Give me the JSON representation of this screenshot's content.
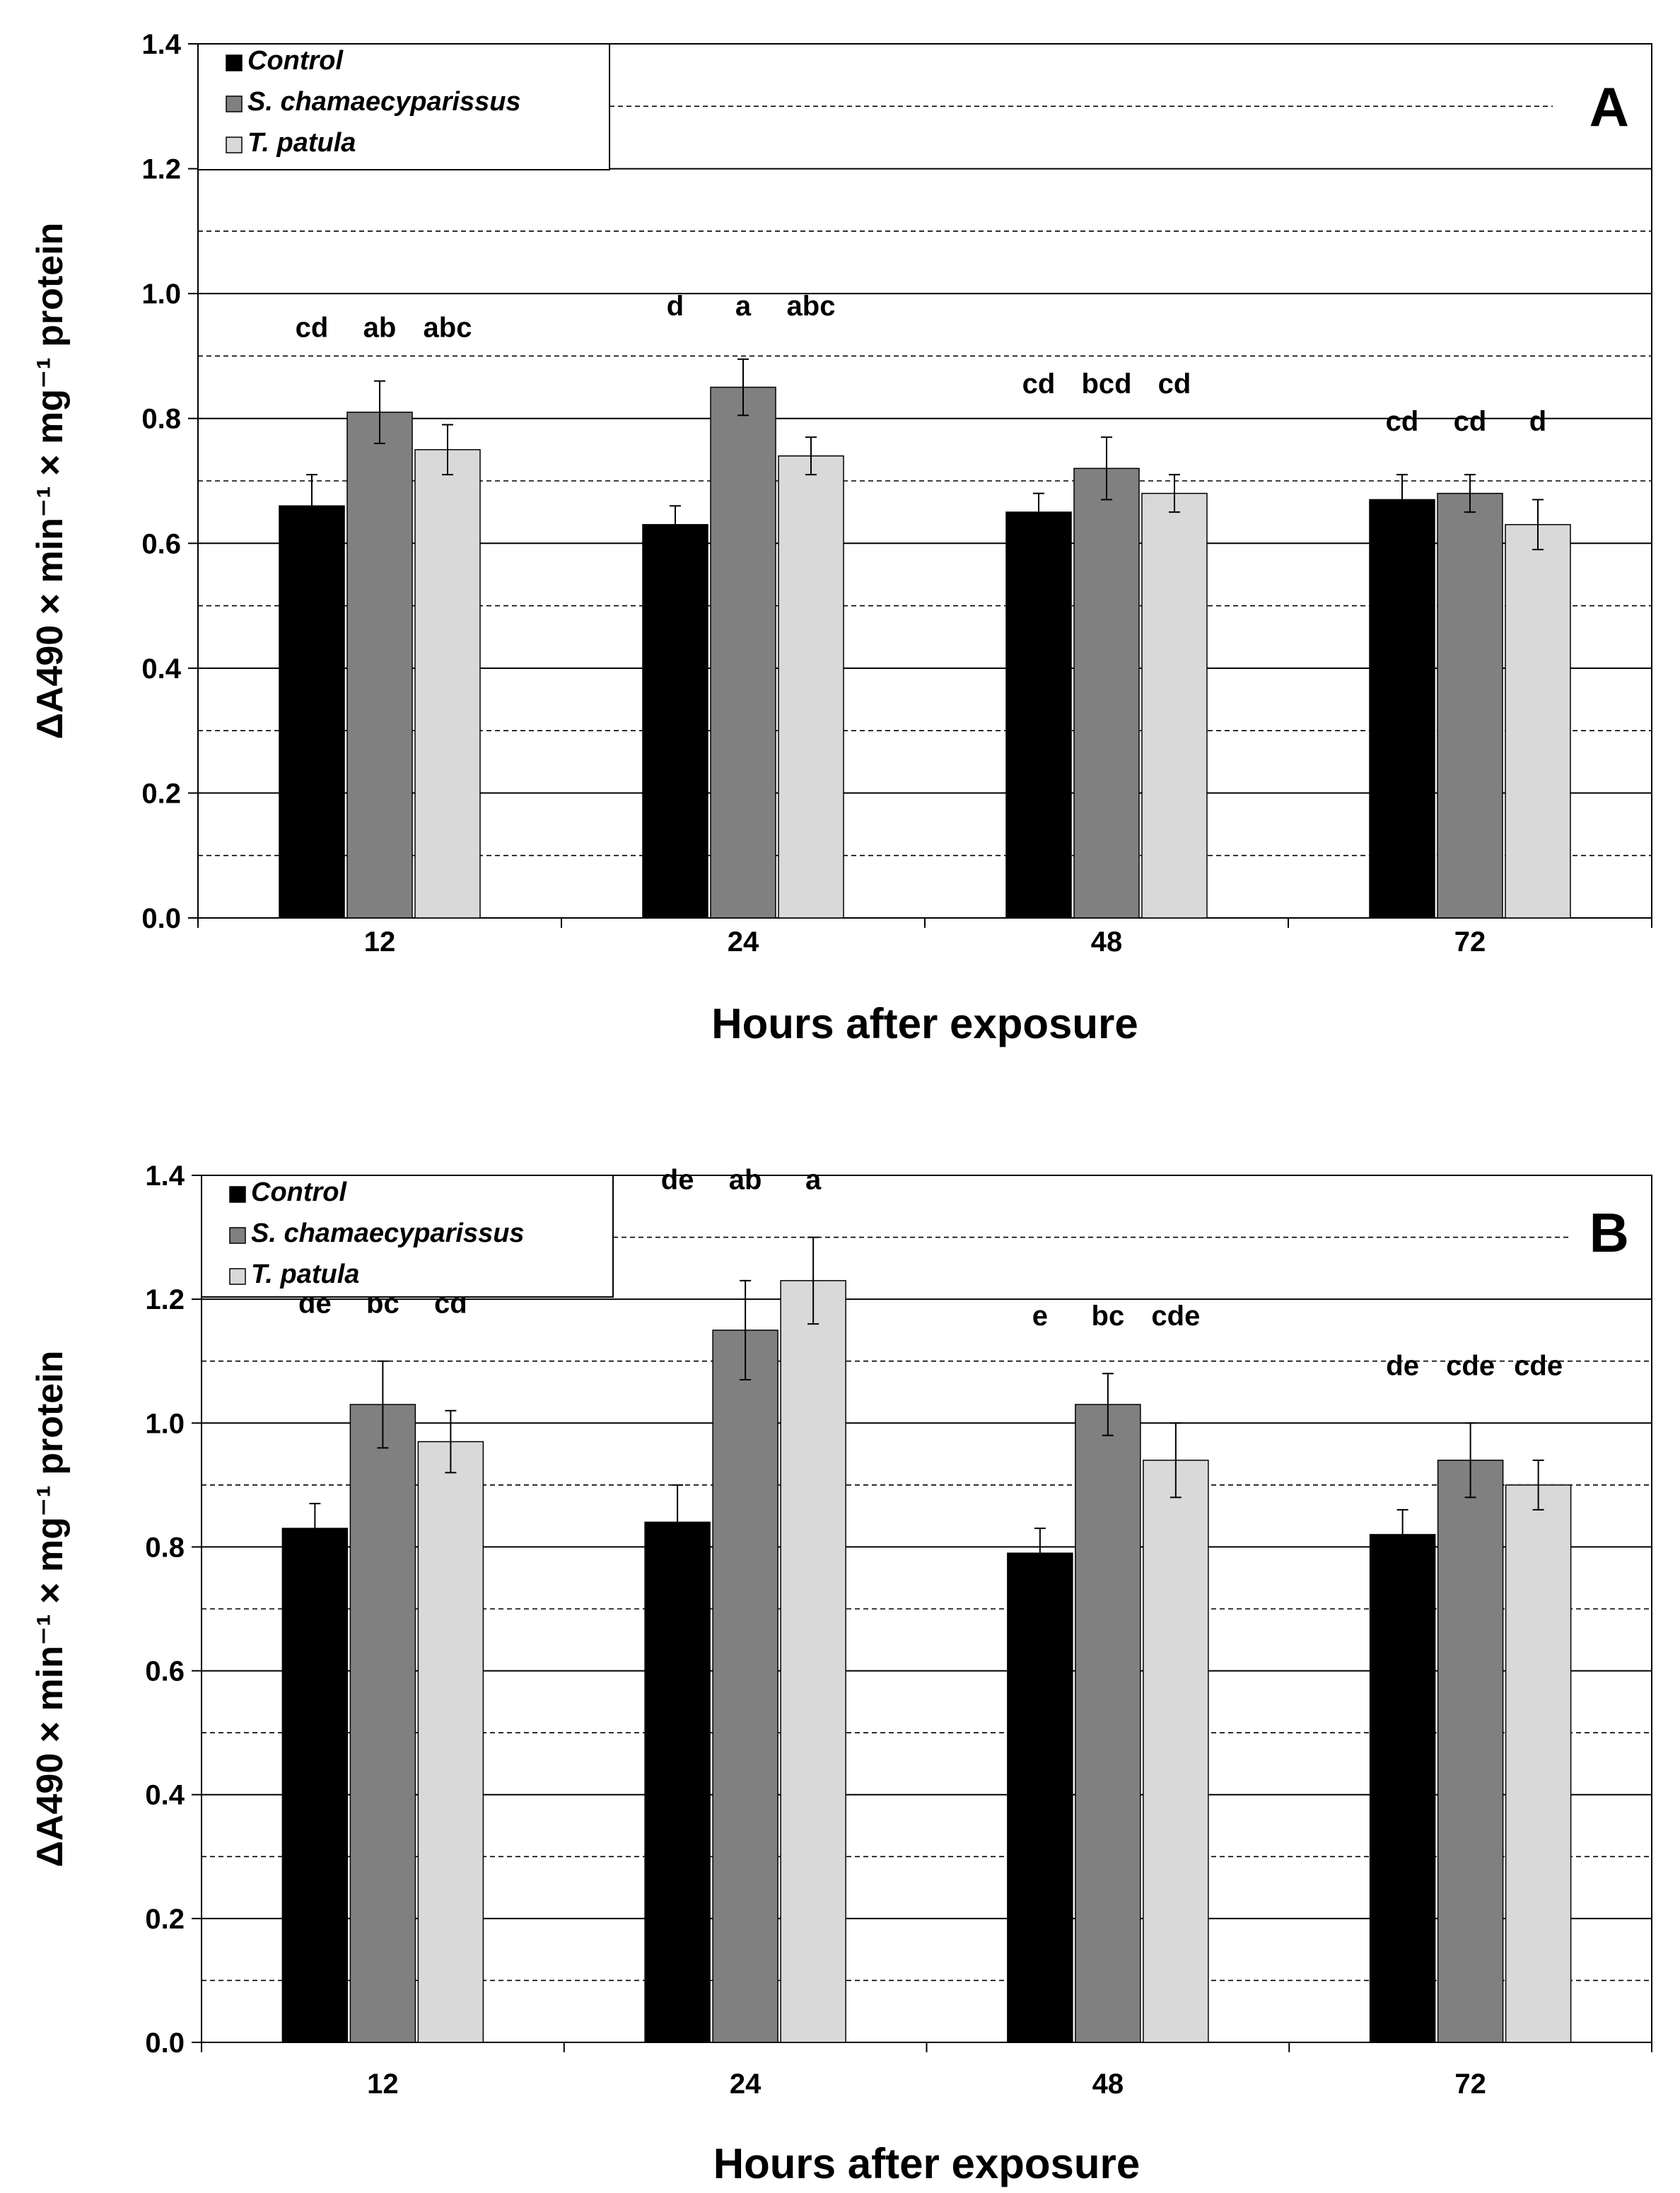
{
  "colors": {
    "Control": "#000000",
    "S. chamaecyparissus": "#808080",
    "T. patula": "#d9d9d9",
    "axis": "#000000",
    "grid_major": "#000000",
    "grid_minor": "#000000"
  },
  "chart_data": [
    {
      "panel_label": "A",
      "type": "bar",
      "xlabel": "Hours after exposure",
      "ylabel": "ΔA490 × min⁻¹ × mg⁻¹ protein",
      "ylim": [
        0,
        1.4
      ],
      "yticks": [
        "0.0",
        "0.2",
        "0.4",
        "0.6",
        "0.8",
        "1.0",
        "1.2",
        "1.4"
      ],
      "categories": [
        "12",
        "24",
        "48",
        "72"
      ],
      "legend": [
        "Control",
        "S. chamaecyparissus",
        "T. patula"
      ],
      "legend_position": "top-left",
      "series": [
        {
          "name": "Control",
          "values": [
            0.66,
            0.63,
            0.65,
            0.67
          ],
          "errors": [
            0.05,
            0.03,
            0.03,
            0.04
          ],
          "letters": [
            "cd",
            "d",
            "cd",
            "cd"
          ]
        },
        {
          "name": "S. chamaecyparissus",
          "values": [
            0.81,
            0.85,
            0.72,
            0.68
          ],
          "errors": [
            0.05,
            0.045,
            0.05,
            0.03
          ],
          "letters": [
            "ab",
            "a",
            "bcd",
            "cd"
          ]
        },
        {
          "name": "T. patula",
          "values": [
            0.75,
            0.74,
            0.68,
            0.63
          ],
          "errors": [
            0.04,
            0.03,
            0.03,
            0.04
          ],
          "letters": [
            "abc",
            "abc",
            "cd",
            "d"
          ]
        }
      ]
    },
    {
      "panel_label": "B",
      "type": "bar",
      "xlabel": "Hours after exposure",
      "ylabel": "ΔA490 × min⁻¹ × mg⁻¹ protein",
      "ylim": [
        0,
        1.4
      ],
      "yticks": [
        "0.0",
        "0.2",
        "0.4",
        "0.6",
        "0.8",
        "1.0",
        "1.2",
        "1.4"
      ],
      "categories": [
        "12",
        "24",
        "48",
        "72"
      ],
      "legend": [
        "Control",
        "S. chamaecyparissus",
        "T. patula"
      ],
      "legend_position": "top-left",
      "series": [
        {
          "name": "Control",
          "values": [
            0.83,
            0.84,
            0.79,
            0.82
          ],
          "errors": [
            0.04,
            0.06,
            0.04,
            0.04
          ],
          "letters": [
            "de",
            "de",
            "e",
            "de"
          ]
        },
        {
          "name": "S. chamaecyparissus",
          "values": [
            1.03,
            1.15,
            1.03,
            0.94
          ],
          "errors": [
            0.07,
            0.08,
            0.05,
            0.06
          ],
          "letters": [
            "bc",
            "ab",
            "bc",
            "cde"
          ]
        },
        {
          "name": "T. patula",
          "values": [
            0.97,
            1.23,
            0.94,
            0.9
          ],
          "errors": [
            0.05,
            0.07,
            0.06,
            0.04
          ],
          "letters": [
            "cd",
            "a",
            "cde",
            "cde"
          ]
        }
      ]
    }
  ]
}
